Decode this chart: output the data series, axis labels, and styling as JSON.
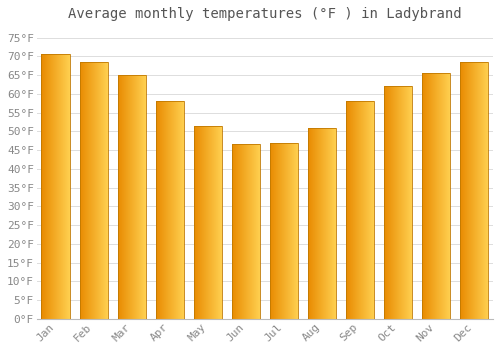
{
  "title": "Average monthly temperatures (°F ) in Ladybrand",
  "months": [
    "Jan",
    "Feb",
    "Mar",
    "Apr",
    "May",
    "Jun",
    "Jul",
    "Aug",
    "Sep",
    "Oct",
    "Nov",
    "Dec"
  ],
  "values": [
    70.5,
    68.5,
    65.0,
    58.0,
    51.5,
    46.5,
    47.0,
    51.0,
    58.0,
    62.0,
    65.5,
    68.5
  ],
  "bar_color_dark": "#E88A00",
  "bar_color_light": "#FFD050",
  "bar_edge_color": "#C07800",
  "ylim": [
    0,
    78
  ],
  "yticks": [
    0,
    5,
    10,
    15,
    20,
    25,
    30,
    35,
    40,
    45,
    50,
    55,
    60,
    65,
    70,
    75
  ],
  "background_color": "#FFFFFF",
  "grid_color": "#DDDDDD",
  "title_fontsize": 10,
  "tick_fontsize": 8,
  "tick_color": "#888888",
  "title_color": "#555555"
}
